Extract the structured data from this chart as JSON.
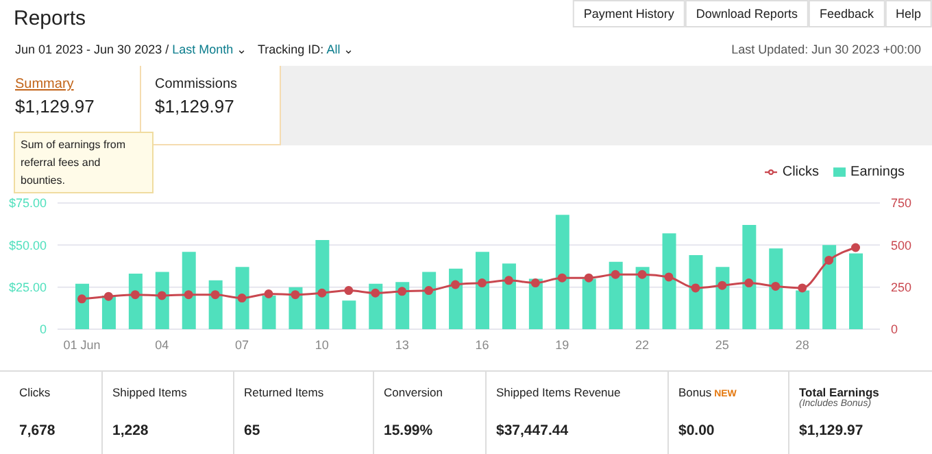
{
  "chart_data": {
    "type": "bar",
    "title": "Reports",
    "categories": [
      "01 Jun",
      null,
      null,
      "04",
      null,
      null,
      "07",
      null,
      null,
      "10",
      null,
      null,
      "13",
      null,
      null,
      "16",
      null,
      null,
      "19",
      null,
      null,
      "22",
      null,
      null,
      "25",
      null,
      null,
      "28",
      null,
      null
    ],
    "series": [
      {
        "name": "Earnings",
        "color": "#50e0bd",
        "values": [
          27,
          20,
          33,
          34,
          46,
          29,
          37,
          20,
          25,
          53,
          17,
          27,
          28,
          34,
          36,
          46,
          39,
          30,
          68,
          30,
          40,
          37,
          57,
          44,
          37,
          62,
          48,
          23,
          50,
          45
        ]
      },
      {
        "name": "Clicks",
        "type": "line",
        "axis": "y2",
        "color": "#c9474f",
        "marker": "circle",
        "values": [
          180,
          195,
          205,
          200,
          205,
          205,
          185,
          210,
          205,
          215,
          230,
          215,
          225,
          230,
          265,
          275,
          290,
          275,
          305,
          305,
          325,
          325,
          310,
          245,
          260,
          275,
          255,
          245,
          410,
          485
        ]
      }
    ],
    "ylim": [
      0,
      75
    ],
    "yticks": [
      {
        "value": 0,
        "label": "0"
      },
      {
        "value": 25,
        "label": "$25.00"
      },
      {
        "value": 50,
        "label": "$50.00"
      },
      {
        "value": 75,
        "label": "$75.00"
      }
    ],
    "y2lim": [
      0,
      750
    ],
    "y2ticks": [
      0,
      250,
      500,
      750
    ],
    "grid": "y",
    "legend": "top right",
    "line_style": "solid",
    "annotations": [
      "Payment History",
      "Download Reports",
      "Feedback",
      "Help",
      "Jun 01 2023 - Jun 30 2023 /",
      "Last Month",
      "Tracking ID:",
      "All",
      "Last Updated: Jun 30 2023 +00:00",
      "Summary",
      "$1,129.97",
      "Commissions",
      "$1,129.97",
      "Sum of earnings from referral fees and bounties.",
      "Clicks",
      "7,678",
      "Shipped Items",
      "1,228",
      "Returned Items",
      "65",
      "Conversion",
      "15.99%",
      "Shipped Items Revenue",
      "$37,447.44",
      "Bonus",
      "$0.00",
      "Total Earnings",
      "$1,129.97",
      "NEW",
      "(Includes Bonus)",
      "⌄"
    ]
  }
}
